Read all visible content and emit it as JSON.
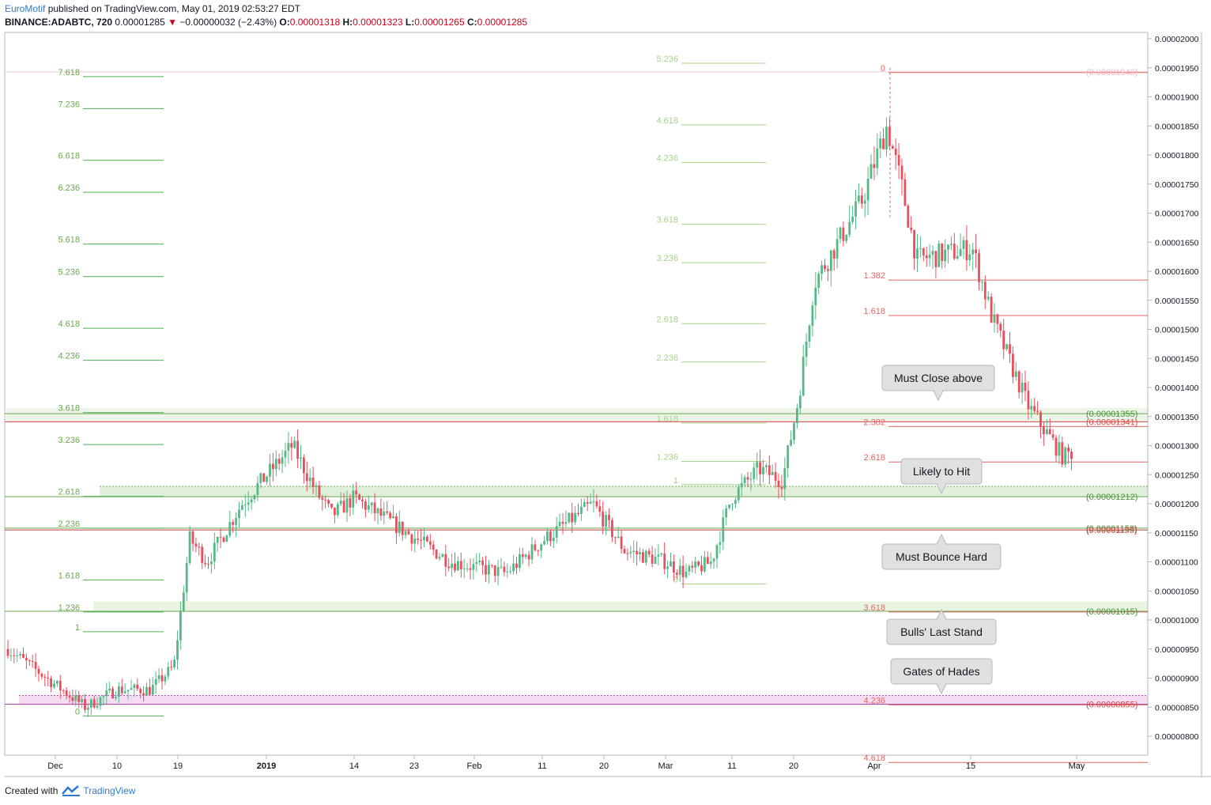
{
  "header": {
    "brand": "EuroMotif",
    "published_text": " published on TradingView.com, May 01, 2019 02:53:27 EDT",
    "symbol": "BINANCE:ADABTC, 720",
    "last": " 0.00001285 ",
    "change": " −0.00000032 (−2.43%) ",
    "o_label": "O:",
    "o_value": "0.00001318",
    "h_label": " H:",
    "h_value": "0.00001323",
    "l_label": " L:",
    "l_value": "0.00001265",
    "c_label": " C:",
    "c_value": "0.00001285"
  },
  "footer": {
    "created_with": "Created with",
    "tradingview": "TradingView"
  },
  "colors": {
    "up": "#53b987",
    "down": "#eb4d5c",
    "fib_green": "#4caf50",
    "fib_green_text": "#6aa84f",
    "fib_green_light": "#a8d08d",
    "fib_red": "#e06666",
    "fib_red_text": "#e06666",
    "axis_text": "#131722",
    "grid": "#e9e9ea"
  },
  "chart_data": {
    "type": "candlestick",
    "ylim": [
      7.7e-06,
      2.01e-05
    ],
    "y_ticks": [
      "0.00002000",
      "0.00001950",
      "0.00001900",
      "0.00001850",
      "0.00001800",
      "0.00001750",
      "0.00001700",
      "0.00001650",
      "0.00001600",
      "0.00001550",
      "0.00001500",
      "0.00001450",
      "0.00001400",
      "0.00001350",
      "0.00001300",
      "0.00001250",
      "0.00001200",
      "0.00001150",
      "0.00001100",
      "0.00001050",
      "0.00001000",
      "0.00000950",
      "0.00000900",
      "0.00000850",
      "0.00000800"
    ],
    "x_ticks": [
      "Dec",
      "10",
      "19",
      "2019",
      "14",
      "23",
      "Feb",
      "11",
      "20",
      "Mar",
      "11",
      "20",
      "Apr",
      "15",
      "May"
    ],
    "price_path": [
      [
        "Dec",
        9.5e-06
      ],
      [
        "Dec 8",
        8.5e-06
      ],
      [
        "Dec 10",
        8.8e-06
      ],
      [
        "Dec 17",
        8.8e-06
      ],
      [
        "Dec 21",
        9.2e-06
      ],
      [
        "Dec 25",
        1.14e-05
      ],
      [
        "Dec 28",
        1.1e-05
      ],
      [
        "Jan 2",
        1.2e-05
      ],
      [
        "Jan 8",
        1.3e-05
      ],
      [
        "Jan 10",
        1.22e-05
      ],
      [
        "Jan 14",
        1.18e-05
      ],
      [
        "Jan 23",
        1.21e-05
      ],
      [
        "Feb",
        1.1e-05
      ],
      [
        "Feb 8",
        1.08e-05
      ],
      [
        "Feb 12",
        1.14e-05
      ],
      [
        "Feb 18",
        1.2e-05
      ],
      [
        "Feb 22",
        1.12e-05
      ],
      [
        "Mar",
        1.1e-05
      ],
      [
        "Mar 5",
        1.08e-05
      ],
      [
        "Mar 8",
        1.1e-05
      ],
      [
        "Mar 12",
        1.21e-05
      ],
      [
        "Mar 15",
        1.26e-05
      ],
      [
        "Mar 19",
        1.24e-05
      ],
      [
        "Mar 22",
        1.38e-05
      ],
      [
        "Mar 25",
        1.58e-05
      ],
      [
        "Mar 30",
        1.72e-05
      ],
      [
        "Apr 2",
        1.85e-05
      ],
      [
        "Apr 6",
        1.75e-05
      ],
      [
        "Apr 10",
        1.62e-05
      ],
      [
        "Apr 15",
        1.64e-05
      ],
      [
        "Apr 18",
        1.52e-05
      ],
      [
        "Apr 22",
        1.37e-05
      ],
      [
        "Apr 25",
        1.33e-05
      ],
      [
        "Apr 28",
        1.28e-05
      ],
      [
        "Apr 30",
        1.29e-05
      ]
    ],
    "fib_sets": [
      {
        "name": "left-extension",
        "levels": [
          {
            "label": "7.618",
            "price": 1.943e-05
          },
          {
            "label": "7.236",
            "price": 1.888e-05
          },
          {
            "label": "6.618",
            "price": 1.799e-05
          },
          {
            "label": "6.236",
            "price": 1.744e-05
          },
          {
            "label": "5.618",
            "price": 1.655e-05
          },
          {
            "label": "5.236",
            "price": 1.599e-05
          },
          {
            "label": "4.618",
            "price": 1.51e-05
          },
          {
            "label": "4.236",
            "price": 1.455e-05
          },
          {
            "label": "3.618",
            "price": 1.365e-05
          },
          {
            "label": "3.236",
            "price": 1.31e-05
          },
          {
            "label": "2.618",
            "price": 1.221e-05
          },
          {
            "label": "2.236",
            "price": 1.166e-05
          },
          {
            "label": "1.618",
            "price": 1.077e-05
          },
          {
            "label": "1.236",
            "price": 1.022e-05
          },
          {
            "label": "1",
            "price": 9.88e-06
          },
          {
            "label": "0",
            "price": 8.43e-06
          }
        ]
      },
      {
        "name": "mid-extension",
        "levels": [
          {
            "label": "5.236",
            "price": 1.966e-05
          },
          {
            "label": "4.618",
            "price": 1.86e-05
          },
          {
            "label": "4.236",
            "price": 1.795e-05
          },
          {
            "label": "3.618",
            "price": 1.689e-05
          },
          {
            "label": "3.236",
            "price": 1.623e-05
          },
          {
            "label": "2.618",
            "price": 1.518e-05
          },
          {
            "label": "2.236",
            "price": 1.452e-05
          },
          {
            "label": "1.618",
            "price": 1.347e-05
          },
          {
            "label": "1.236",
            "price": 1.281e-05
          },
          {
            "label": "1",
            "price": 1.241e-05
          },
          {
            "label": "0",
            "price": 1.07e-05
          }
        ]
      },
      {
        "name": "right-extension",
        "levels": [
          {
            "label": "0",
            "price": 1.95e-05
          },
          {
            "label": "1.382",
            "price": 1.593e-05
          },
          {
            "label": "1.618",
            "price": 1.532e-05
          },
          {
            "label": "2.382",
            "price": 1.341e-05
          },
          {
            "label": "2.618",
            "price": 1.28e-05
          },
          {
            "label": "3.618",
            "price": 1.022e-05
          },
          {
            "label": "4.236",
            "price": 8.62e-06
          },
          {
            "label": "4.618",
            "price": 7.63e-06
          }
        ]
      }
    ],
    "price_labels": [
      {
        "text": "(0.00001943)",
        "price": 1.943e-05,
        "color": "pink"
      },
      {
        "text": "(0.00001355)",
        "price": 1.355e-05,
        "color": "green"
      },
      {
        "text": "(0.00001341)",
        "price": 1.341e-05,
        "color": "red"
      },
      {
        "text": "(0.00001212)",
        "price": 1.212e-05,
        "color": "green"
      },
      {
        "text": "(0.00001158)",
        "price": 1.158e-05,
        "color": "green"
      },
      {
        "text": "(0.00001155)",
        "price": 1.155e-05,
        "color": "red"
      },
      {
        "text": "(0.00001015)",
        "price": 1.015e-05,
        "color": "green"
      },
      {
        "text": "(0.00000855)",
        "price": 8.55e-06,
        "color": "red"
      }
    ],
    "callouts": [
      {
        "text": "Must Close above",
        "pointer": "down"
      },
      {
        "text": "Likely to Hit",
        "pointer": "down"
      },
      {
        "text": "Must Bounce Hard",
        "pointer": "up"
      },
      {
        "text": "Bulls' Last Stand",
        "pointer": "up"
      },
      {
        "text": "Gates of Hades",
        "pointer": "down"
      }
    ]
  }
}
